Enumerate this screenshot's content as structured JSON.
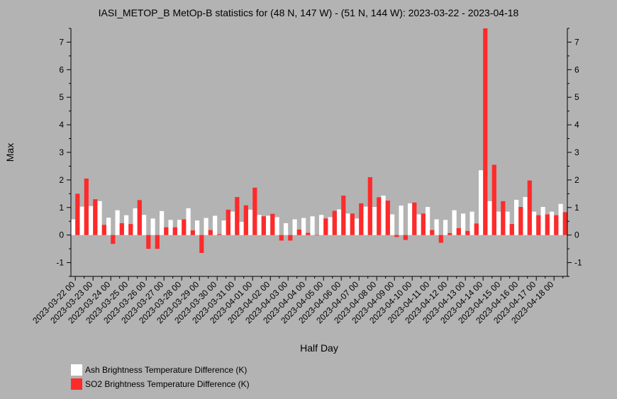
{
  "chart_data": {
    "type": "bar",
    "title": "IASI_METOP_B MetOp-B statistics for (48 N, 147 W) - (51 N, 144 W): 2023-03-22 - 2023-04-18",
    "xlabel": "Half Day",
    "ylabel": "Max",
    "ylim": [
      -1.5,
      7.5
    ],
    "yticks": [
      -1,
      0,
      1,
      2,
      3,
      4,
      5,
      6,
      7
    ],
    "categories": [
      "2023-03-22 00",
      "2023-03-22 12",
      "2023-03-23 00",
      "2023-03-23 12",
      "2023-03-24 00",
      "2023-03-24 12",
      "2023-03-25 00",
      "2023-03-25 12",
      "2023-03-26 00",
      "2023-03-26 12",
      "2023-03-27 00",
      "2023-03-27 12",
      "2023-03-28 00",
      "2023-03-28 12",
      "2023-03-29 00",
      "2023-03-29 12",
      "2023-03-30 00",
      "2023-03-30 12",
      "2023-03-31 00",
      "2023-03-31 12",
      "2023-04-01 00",
      "2023-04-01 12",
      "2023-04-02 00",
      "2023-04-02 12",
      "2023-04-03 00",
      "2023-04-03 12",
      "2023-04-04 00",
      "2023-04-04 12",
      "2023-04-05 00",
      "2023-04-05 12",
      "2023-04-06 00",
      "2023-04-06 12",
      "2023-04-07 00",
      "2023-04-07 12",
      "2023-04-08 00",
      "2023-04-08 12",
      "2023-04-09 00",
      "2023-04-09 12",
      "2023-04-10 00",
      "2023-04-10 12",
      "2023-04-11 00",
      "2023-04-11 12",
      "2023-04-12 00",
      "2023-04-12 12",
      "2023-04-13 00",
      "2023-04-13 12",
      "2023-04-14 00",
      "2023-04-14 12",
      "2023-04-15 00",
      "2023-04-15 12",
      "2023-04-16 00",
      "2023-04-16 12",
      "2023-04-17 00",
      "2023-04-17 12",
      "2023-04-18 00",
      "2023-04-18 12"
    ],
    "xtick_labels": [
      "2023-03-22 00",
      "2023-03-23 00",
      "2023-03-24 00",
      "2023-03-25 00",
      "2023-03-26 00",
      "2023-03-27 00",
      "2023-03-28 00",
      "2023-03-29 00",
      "2023-03-30 00",
      "2023-03-31 00",
      "2023-04-01 00",
      "2023-04-02 00",
      "2023-04-03 00",
      "2023-04-04 00",
      "2023-04-05 00",
      "2023-04-06 00",
      "2023-04-07 00",
      "2023-04-08 00",
      "2023-04-09 00",
      "2023-04-10 00",
      "2023-04-11 00",
      "2023-04-12 00",
      "2023-04-13 00",
      "2023-04-14 00",
      "2023-04-15 00",
      "2023-04-16 00",
      "2023-04-17 00",
      "2023-04-18 00"
    ],
    "series": [
      {
        "name": "Ash Brightness Temperature Difference (K)",
        "color": "#ffffff",
        "values": [
          0.57,
          1.03,
          1.05,
          1.23,
          0.63,
          0.9,
          0.72,
          0.97,
          0.73,
          0.6,
          0.87,
          0.55,
          0.55,
          0.97,
          0.53,
          0.62,
          0.7,
          0.53,
          0.85,
          0.48,
          0.92,
          0.73,
          0.7,
          0.65,
          0.43,
          0.57,
          0.62,
          0.68,
          0.73,
          0.65,
          0.93,
          0.78,
          0.6,
          1.03,
          1.02,
          1.43,
          0.75,
          1.07,
          1.15,
          0.75,
          1.02,
          0.57,
          0.55,
          0.9,
          0.78,
          0.85,
          2.35,
          1.23,
          0.85,
          0.85,
          1.28,
          1.38,
          0.85,
          1.02,
          0.85,
          1.13
        ]
      },
      {
        "name": "SO2 Brightness Temperature Difference (K)",
        "color": "#ff2a2a",
        "values": [
          1.5,
          2.05,
          1.3,
          0.37,
          -0.32,
          0.43,
          0.4,
          1.27,
          -0.5,
          -0.5,
          0.28,
          0.28,
          0.57,
          0.17,
          -0.65,
          0.18,
          0.03,
          0.92,
          1.38,
          1.08,
          1.72,
          0.68,
          0.77,
          -0.2,
          -0.2,
          0.2,
          0.08,
          0.0,
          0.6,
          0.88,
          1.43,
          0.78,
          1.15,
          2.1,
          1.37,
          1.25,
          -0.07,
          -0.18,
          1.18,
          0.78,
          0.18,
          -0.28,
          0.07,
          0.25,
          0.15,
          0.42,
          7.5,
          2.55,
          1.23,
          0.4,
          1.02,
          1.98,
          0.72,
          0.75,
          0.72,
          0.83
        ]
      }
    ],
    "grid": false,
    "legend_position": "bottom-left"
  }
}
